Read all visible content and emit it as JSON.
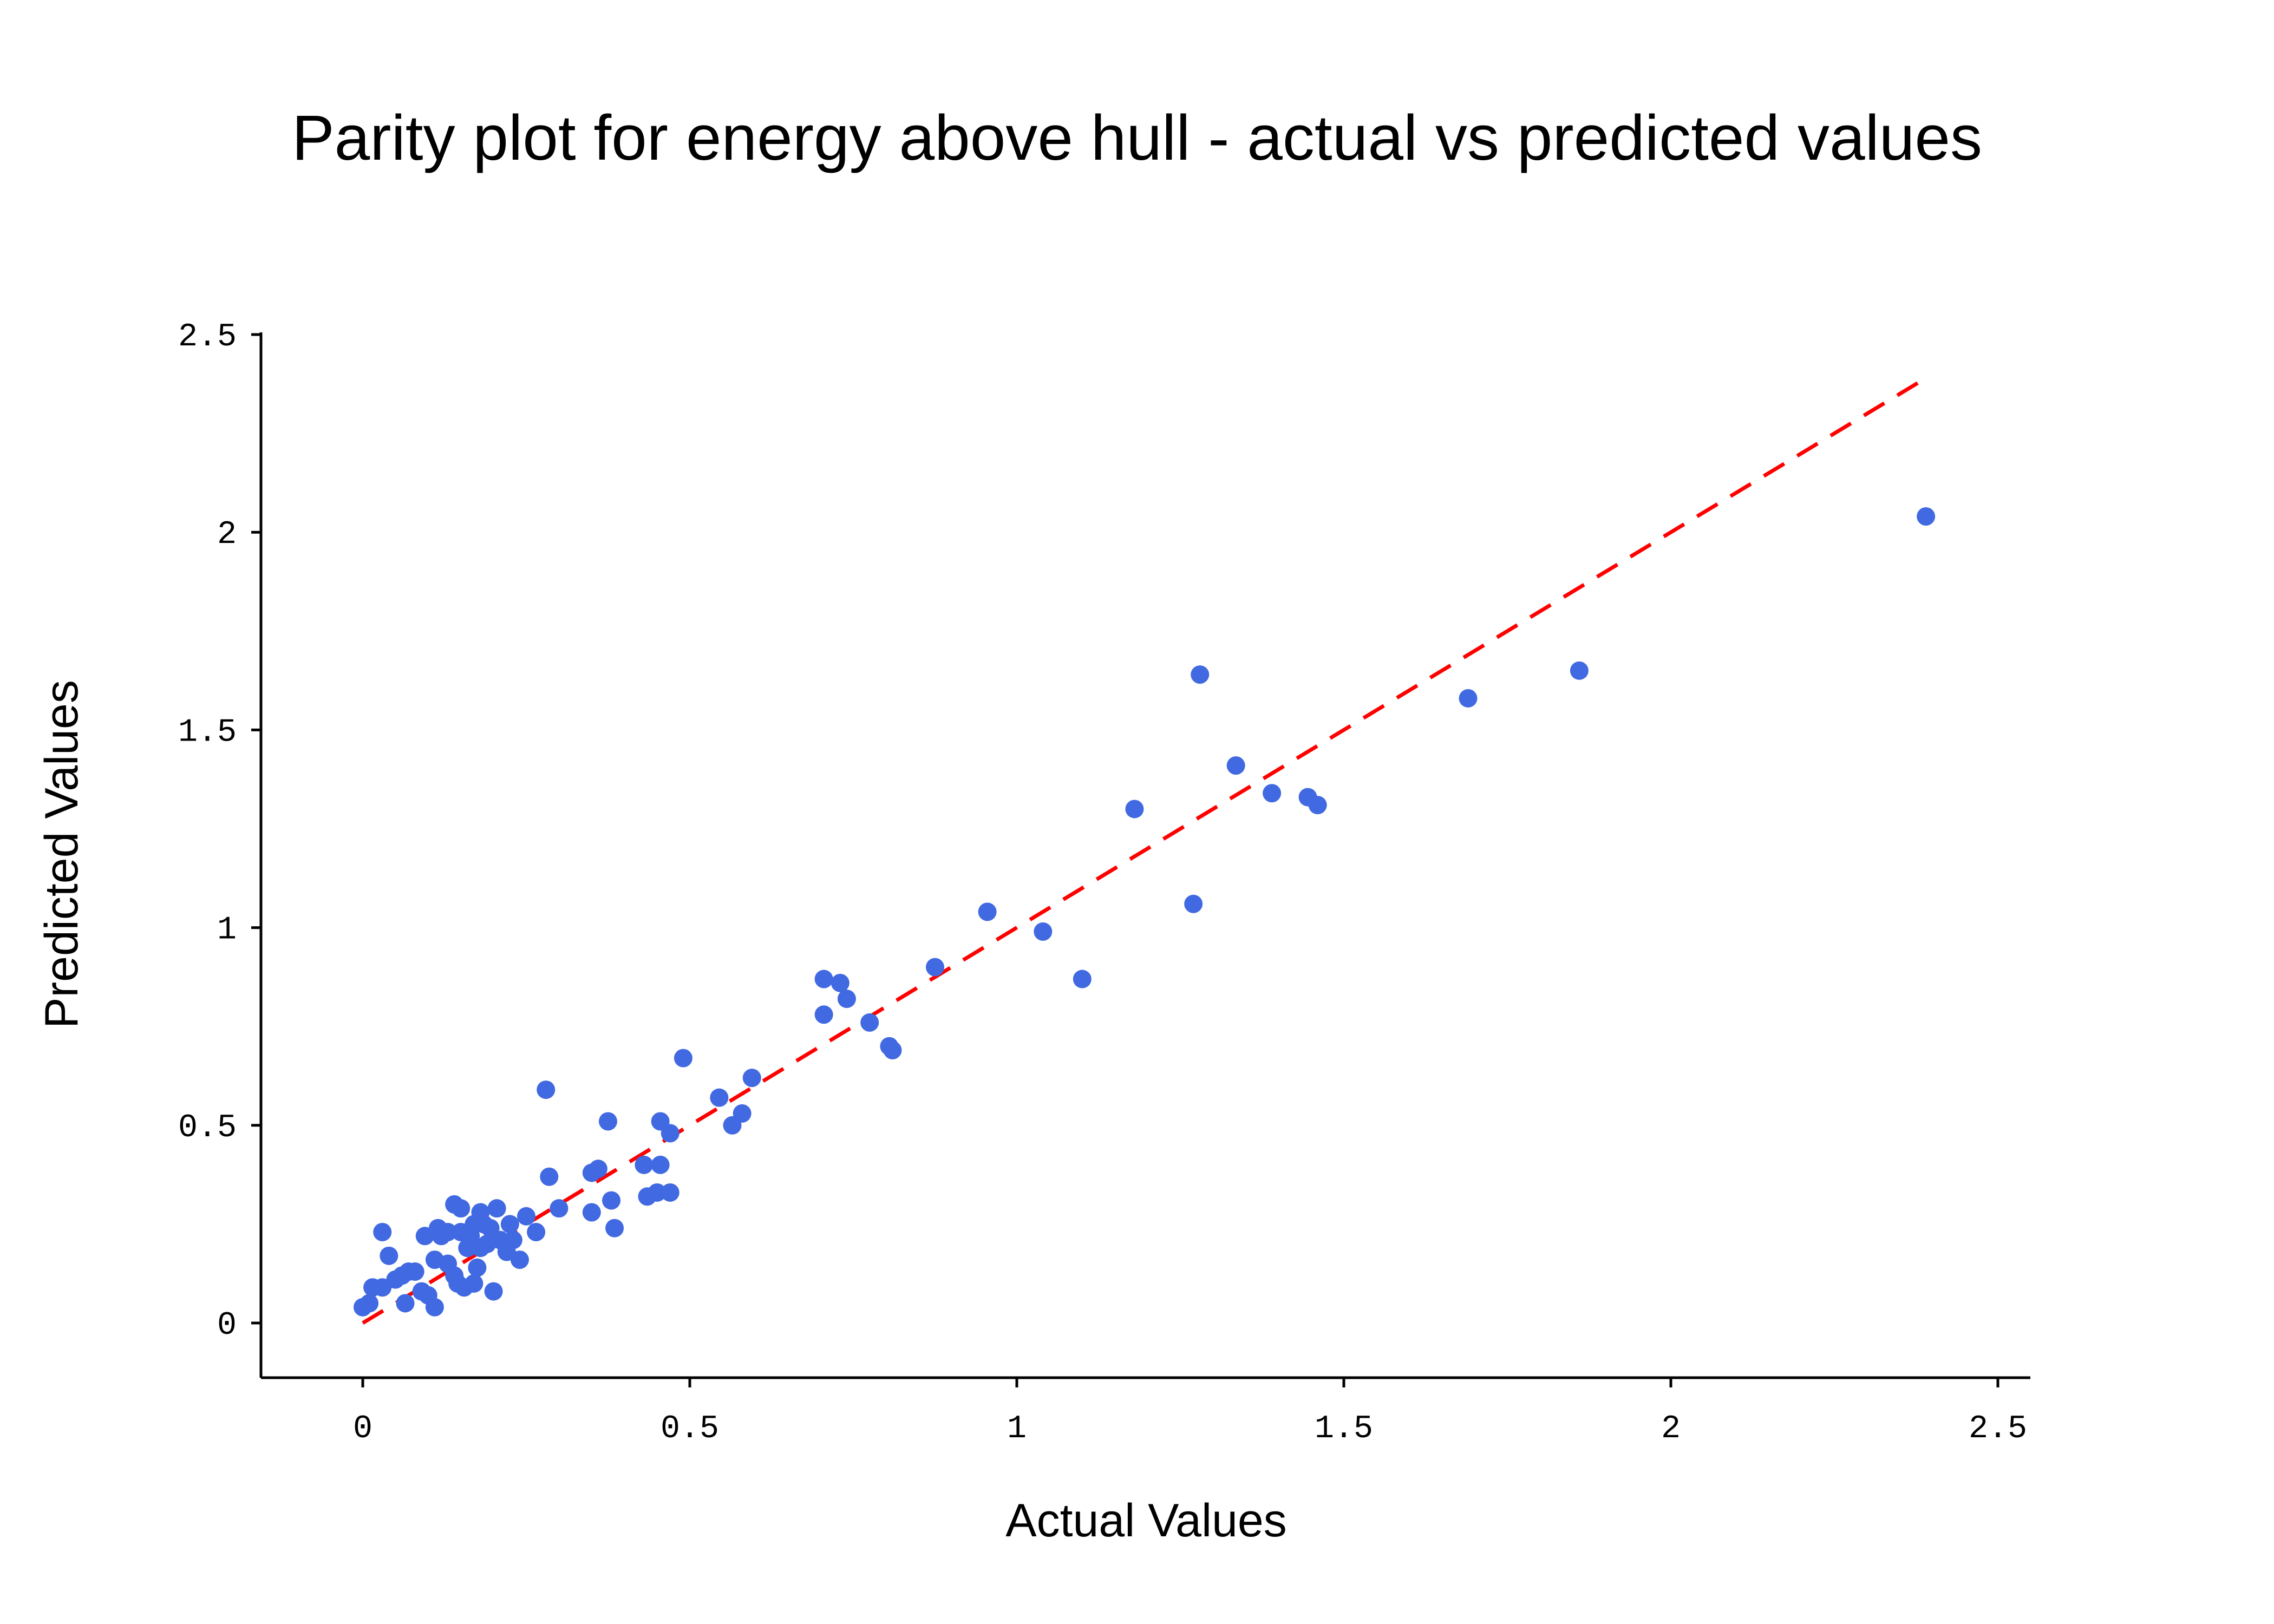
{
  "chart_data": {
    "type": "scatter",
    "title": "Parity plot for energy above hull - actual vs predicted values",
    "xlabel": "Actual Values",
    "ylabel": "Predicted Values",
    "xlim": [
      -0.15,
      2.53
    ],
    "ylim": [
      -0.13,
      2.53
    ],
    "grid": false,
    "legend": "none",
    "x_ticks": [
      0,
      0.5,
      1,
      1.5,
      2,
      2.5
    ],
    "y_ticks": [
      0,
      0.5,
      1,
      1.5,
      2,
      2.5
    ],
    "x_tick_labels": [
      "0",
      "0.5",
      "1",
      "1.5",
      "2",
      "2.5"
    ],
    "y_tick_labels": [
      "0",
      "0.5",
      "1",
      "1.5",
      "2",
      "2.5"
    ],
    "colors": {
      "points": "#4169e1",
      "parity_line": "#ff0000",
      "axes": "#000000"
    },
    "parity_line": {
      "from": [
        0,
        0
      ],
      "to": [
        2.38,
        2.38
      ],
      "style": "dashed"
    },
    "series": [
      {
        "x": [
          0.0,
          0.01,
          0.015,
          0.03,
          0.03,
          0.04,
          0.05,
          0.06,
          0.065,
          0.07,
          0.08,
          0.09,
          0.095,
          0.1,
          0.11,
          0.11,
          0.115,
          0.12,
          0.13,
          0.13,
          0.14,
          0.14,
          0.145,
          0.15,
          0.15,
          0.155,
          0.16,
          0.165,
          0.17,
          0.17,
          0.175,
          0.18,
          0.18,
          0.185,
          0.19,
          0.195,
          0.2,
          0.205,
          0.21,
          0.22,
          0.22,
          0.225,
          0.23,
          0.24,
          0.25,
          0.265,
          0.28,
          0.285,
          0.3,
          0.35,
          0.35,
          0.36,
          0.375,
          0.38,
          0.385,
          0.43,
          0.435,
          0.45,
          0.455,
          0.455,
          0.47,
          0.47,
          0.49,
          0.545,
          0.565,
          0.58,
          0.595,
          0.705,
          0.705,
          0.73,
          0.74,
          0.775,
          0.805,
          0.81,
          0.875,
          0.955,
          1.04,
          1.1,
          1.18,
          1.27,
          1.28,
          1.335,
          1.39,
          1.445,
          1.46,
          1.69,
          1.86,
          2.39
        ],
        "y": [
          0.04,
          0.05,
          0.09,
          0.23,
          0.09,
          0.17,
          0.11,
          0.12,
          0.05,
          0.13,
          0.13,
          0.08,
          0.22,
          0.07,
          0.04,
          0.16,
          0.24,
          0.22,
          0.15,
          0.23,
          0.3,
          0.12,
          0.1,
          0.29,
          0.23,
          0.09,
          0.19,
          0.22,
          0.1,
          0.25,
          0.14,
          0.28,
          0.19,
          0.25,
          0.2,
          0.24,
          0.08,
          0.29,
          0.21,
          0.2,
          0.18,
          0.25,
          0.21,
          0.16,
          0.27,
          0.23,
          0.59,
          0.37,
          0.29,
          0.38,
          0.28,
          0.39,
          0.51,
          0.31,
          0.24,
          0.4,
          0.32,
          0.33,
          0.51,
          0.4,
          0.48,
          0.33,
          0.67,
          0.57,
          0.5,
          0.53,
          0.62,
          0.87,
          0.78,
          0.86,
          0.82,
          0.76,
          0.7,
          0.69,
          0.9,
          1.04,
          0.99,
          0.87,
          1.3,
          1.06,
          1.64,
          1.41,
          1.34,
          1.33,
          1.31,
          1.58,
          1.65,
          2.04
        ]
      }
    ]
  }
}
